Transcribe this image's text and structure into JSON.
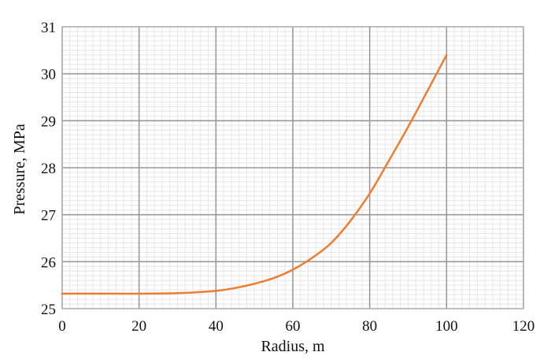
{
  "chart_data": {
    "type": "line",
    "title": "",
    "xlabel": "Radius, m",
    "ylabel": "Pressure, MPa",
    "xlim": [
      0,
      120
    ],
    "ylim": [
      25,
      31
    ],
    "xticks": [
      0,
      20,
      40,
      60,
      80,
      100,
      120
    ],
    "yticks": [
      25,
      26,
      27,
      28,
      29,
      30,
      31
    ],
    "grid": true,
    "minor_grid": true,
    "legend": "none",
    "series": [
      {
        "color": "#ED7D31",
        "x": [
          0,
          10,
          20,
          30,
          40,
          45,
          50,
          55,
          60,
          65,
          70,
          75,
          80,
          85,
          90,
          95,
          100
        ],
        "y": [
          25.32,
          25.32,
          25.32,
          25.33,
          25.38,
          25.44,
          25.53,
          25.65,
          25.83,
          26.08,
          26.4,
          26.87,
          27.45,
          28.15,
          28.87,
          29.63,
          30.4
        ]
      }
    ]
  }
}
